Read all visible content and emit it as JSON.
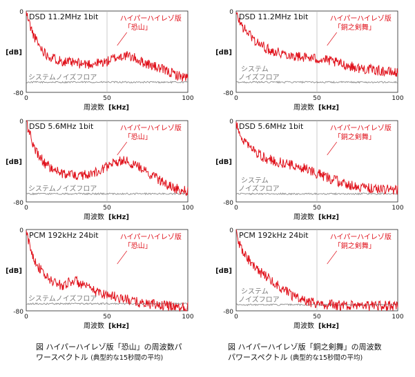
{
  "colors": {
    "signal": "#e0111b",
    "noise": "#8c8c8c",
    "axis": "#222222",
    "annotation": "#e0111b",
    "noise_label": "#7a7a7a"
  },
  "captions": {
    "left": {
      "main": "図  ハイパーハイレゾ版「恐山」の周波数パ",
      "line2": "ワースペクトル",
      "sub": "(典型的な15秒間の平均)"
    },
    "right": {
      "main": "図  ハイパーハイレゾ版「銅之剣舞」の周波数",
      "line2": "パワースペクトル",
      "sub": "(典型的な15秒間の平均)"
    }
  },
  "chart_data": [
    {
      "type": "line",
      "title": "DSD 11.2MHz 1bit",
      "annotation": [
        "ハイパーハイレゾ版",
        "「恐山」"
      ],
      "noise_label": [
        "システムノイズフロア"
      ],
      "xlabel": "周波数",
      "xunit": "[kHz]",
      "ylabel": "[dB]",
      "xlim": [
        0,
        100
      ],
      "ylim": [
        -80,
        0
      ],
      "xticks": [
        "0",
        "50",
        "100"
      ],
      "yticks": [
        "0",
        "-80"
      ],
      "series": [
        {
          "x": [
            0,
            2,
            4,
            6,
            8,
            10,
            12,
            15,
            18,
            20,
            22,
            25,
            28,
            30,
            35,
            40,
            45,
            50,
            52,
            55,
            58,
            60,
            62,
            65,
            68,
            70,
            75,
            80,
            85,
            90,
            95,
            100
          ],
          "y": [
            -2,
            -12,
            -22,
            -28,
            -34,
            -38,
            -42,
            -45,
            -47,
            -48,
            -49,
            -50,
            -51,
            -51,
            -52,
            -52,
            -51,
            -50,
            -48,
            -46,
            -45,
            -44,
            -44,
            -45,
            -47,
            -49,
            -52,
            -55,
            -58,
            -61,
            -64,
            -66
          ]
        },
        {
          "x": [
            0,
            10,
            20,
            30,
            40,
            50,
            60,
            70,
            80,
            90,
            100
          ],
          "y": [
            -70,
            -70,
            -70,
            -70,
            -70,
            -70,
            -70,
            -70,
            -70,
            -70,
            -70
          ]
        }
      ]
    },
    {
      "type": "line",
      "title": "DSD 11.2MHz 1bit",
      "annotation": [
        "ハイパーハイレゾ版",
        "「銅之剣舞」"
      ],
      "noise_label": [
        "システム",
        "ノイズフロア"
      ],
      "xlabel": "周波数",
      "xunit": "[kHz]",
      "ylabel": "[dB]",
      "xlim": [
        0,
        100
      ],
      "ylim": [
        -80,
        0
      ],
      "xticks": [
        "0",
        "50",
        "100"
      ],
      "yticks": [
        "0",
        "-80"
      ],
      "series": [
        {
          "x": [
            0,
            2,
            5,
            8,
            10,
            12,
            15,
            18,
            20,
            25,
            30,
            35,
            40,
            45,
            50,
            55,
            60,
            65,
            70,
            75,
            80,
            85,
            90,
            95,
            100
          ],
          "y": [
            -3,
            -10,
            -18,
            -22,
            -26,
            -30,
            -33,
            -36,
            -38,
            -40,
            -42,
            -44,
            -45,
            -46,
            -47,
            -48,
            -50,
            -52,
            -54,
            -56,
            -57,
            -58,
            -59,
            -60,
            -61
          ]
        },
        {
          "x": [
            0,
            10,
            20,
            30,
            40,
            50,
            60,
            70,
            80,
            90,
            100
          ],
          "y": [
            -70,
            -70,
            -70,
            -70,
            -70,
            -70,
            -70,
            -70,
            -70,
            -70,
            -70
          ]
        }
      ]
    },
    {
      "type": "line",
      "title": "DSD 5.6MHz 1bit",
      "annotation": [
        "ハイパーハイレゾ版",
        "「恐山」"
      ],
      "noise_label": [
        "システムノイズフロア"
      ],
      "xlabel": "周波数",
      "xunit": "[kHz]",
      "ylabel": "[dB]",
      "xlim": [
        0,
        100
      ],
      "ylim": [
        -80,
        0
      ],
      "xticks": [
        "0",
        "50",
        "100"
      ],
      "yticks": [
        "0",
        "-80"
      ],
      "series": [
        {
          "x": [
            0,
            2,
            4,
            6,
            8,
            10,
            12,
            15,
            18,
            20,
            22,
            25,
            28,
            30,
            35,
            40,
            45,
            50,
            55,
            58,
            60,
            62,
            65,
            70,
            75,
            80,
            85,
            90,
            95,
            100
          ],
          "y": [
            -2,
            -12,
            -22,
            -30,
            -35,
            -39,
            -43,
            -46,
            -49,
            -51,
            -52,
            -53,
            -54,
            -54,
            -54,
            -52,
            -49,
            -45,
            -42,
            -40,
            -39,
            -40,
            -42,
            -46,
            -51,
            -56,
            -61,
            -65,
            -68,
            -70
          ]
        },
        {
          "x": [
            0,
            10,
            20,
            30,
            40,
            50,
            60,
            70,
            80,
            90,
            100
          ],
          "y": [
            -72,
            -72,
            -72,
            -72,
            -72,
            -72,
            -72,
            -72,
            -72,
            -72,
            -72
          ]
        }
      ]
    },
    {
      "type": "line",
      "title": "DSD 5.6MHz 1bit",
      "annotation": [
        "ハイパーハイレゾ版",
        "「銅之剣舞」"
      ],
      "noise_label": [
        "システム",
        "ノイズフロア"
      ],
      "xlabel": "周波数",
      "xunit": "[kHz]",
      "ylabel": "[dB]",
      "xlim": [
        0,
        100
      ],
      "ylim": [
        -80,
        0
      ],
      "xticks": [
        "0",
        "50",
        "100"
      ],
      "yticks": [
        "0",
        "-80"
      ],
      "series": [
        {
          "x": [
            0,
            2,
            5,
            8,
            10,
            12,
            15,
            18,
            20,
            25,
            30,
            35,
            40,
            45,
            50,
            55,
            60,
            65,
            70,
            75,
            80,
            85,
            90,
            95,
            100
          ],
          "y": [
            -3,
            -12,
            -20,
            -25,
            -28,
            -31,
            -34,
            -37,
            -38,
            -40,
            -42,
            -44,
            -46,
            -48,
            -52,
            -55,
            -58,
            -61,
            -63,
            -65,
            -66,
            -67,
            -67,
            -68,
            -68
          ]
        },
        {
          "x": [
            0,
            10,
            20,
            30,
            40,
            50,
            60,
            70,
            80,
            90,
            100
          ],
          "y": [
            -72,
            -72,
            -72,
            -72,
            -72,
            -72,
            -72,
            -72,
            -72,
            -72,
            -72
          ]
        }
      ]
    },
    {
      "type": "line",
      "title": "PCM 192kHz 24bit",
      "annotation": [
        "ハイパーハイレゾ版",
        "「恐山」"
      ],
      "noise_label": [
        "システムノイズフロア"
      ],
      "xlabel": "周波数",
      "xunit": "[kHz]",
      "ylabel": "[dB]",
      "xlim": [
        0,
        100
      ],
      "ylim": [
        -80,
        0
      ],
      "xticks": [
        "0",
        "50",
        "100"
      ],
      "yticks": [
        "0",
        "-80"
      ],
      "series": [
        {
          "x": [
            0,
            2,
            4,
            6,
            8,
            10,
            12,
            15,
            18,
            20,
            22,
            25,
            28,
            30,
            35,
            40,
            45,
            50,
            55,
            60,
            65,
            70,
            75,
            80,
            85,
            90,
            95,
            100
          ],
          "y": [
            -3,
            -15,
            -25,
            -32,
            -38,
            -42,
            -46,
            -50,
            -52,
            -54,
            -55,
            -53,
            -51,
            -50,
            -55,
            -59,
            -62,
            -64,
            -66,
            -68,
            -70,
            -72,
            -73,
            -74,
            -75,
            -75,
            -76,
            -76
          ]
        },
        {
          "x": [
            0,
            10,
            20,
            30,
            40,
            50,
            60,
            70,
            80,
            90,
            100
          ],
          "y": [
            -73,
            -73,
            -73,
            -73,
            -73,
            -73,
            -73,
            -73,
            -73,
            -73,
            -73
          ]
        }
      ]
    },
    {
      "type": "line",
      "title": "PCM 192kHz 24bit",
      "annotation": [
        "ハイパーハイレゾ版",
        "「銅之剣舞」"
      ],
      "noise_label": [
        "システム",
        "ノイズフロア"
      ],
      "xlabel": "周波数",
      "xunit": "[kHz]",
      "ylabel": "[dB]",
      "xlim": [
        0,
        100
      ],
      "ylim": [
        -80,
        0
      ],
      "xticks": [
        "0",
        "50",
        "100"
      ],
      "yticks": [
        "0",
        "-80"
      ],
      "series": [
        {
          "x": [
            0,
            2,
            5,
            8,
            10,
            12,
            15,
            18,
            20,
            25,
            30,
            35,
            40,
            45,
            50,
            55,
            60,
            70,
            80,
            90,
            100
          ],
          "y": [
            -2,
            -14,
            -24,
            -30,
            -34,
            -38,
            -42,
            -45,
            -48,
            -54,
            -60,
            -65,
            -69,
            -71,
            -73,
            -74,
            -74,
            -75,
            -75,
            -75,
            -75
          ]
        },
        {
          "x": [
            0,
            10,
            20,
            30,
            40,
            50,
            60,
            70,
            80,
            90,
            100
          ],
          "y": [
            -74,
            -74,
            -74,
            -74,
            -74,
            -74,
            -74,
            -74,
            -74,
            -74,
            -74
          ]
        }
      ]
    }
  ]
}
